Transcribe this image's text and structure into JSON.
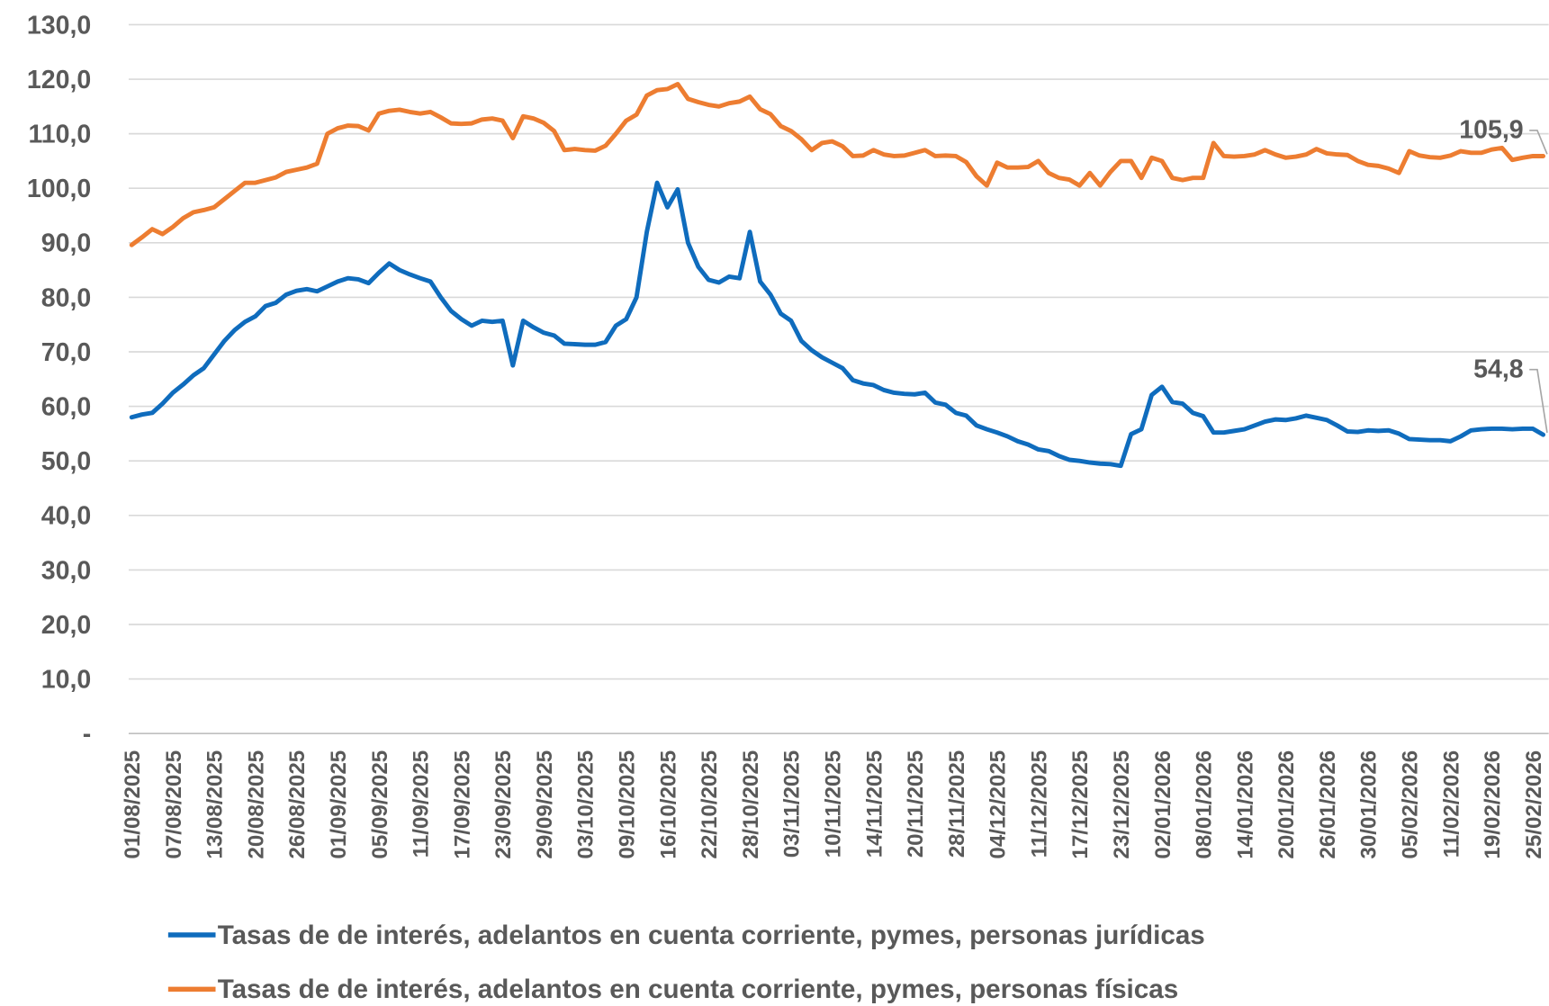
{
  "chart_data": {
    "type": "line",
    "categories": [
      "01/08/2025",
      null,
      null,
      null,
      "07/08/2025",
      null,
      null,
      null,
      "13/08/2025",
      null,
      null,
      null,
      "20/08/2025",
      null,
      null,
      null,
      "26/08/2025",
      null,
      null,
      null,
      "01/09/2025",
      null,
      null,
      null,
      "05/09/2025",
      null,
      null,
      null,
      "11/09/2025",
      null,
      null,
      null,
      "17/09/2025",
      null,
      null,
      null,
      "23/09/2025",
      null,
      null,
      null,
      "29/09/2025",
      null,
      null,
      null,
      "03/10/2025",
      null,
      null,
      null,
      "09/10/2025",
      null,
      null,
      null,
      "16/10/2025",
      null,
      null,
      null,
      "22/10/2025",
      null,
      null,
      null,
      "28/10/2025",
      null,
      null,
      null,
      "03/11/2025",
      null,
      null,
      null,
      "10/11/2025",
      null,
      null,
      null,
      "14/11/2025",
      null,
      null,
      null,
      "20/11/2025",
      null,
      null,
      null,
      "28/11/2025",
      null,
      null,
      null,
      "04/12/2025",
      null,
      null,
      null,
      "11/12/2025",
      null,
      null,
      null,
      "17/12/2025",
      null,
      null,
      null,
      "23/12/2025",
      null,
      null,
      null,
      "02/01/2026",
      null,
      null,
      null,
      "08/01/2026",
      null,
      null,
      null,
      "14/01/2026",
      null,
      null,
      null,
      "20/01/2026",
      null,
      null,
      null,
      "26/01/2026",
      null,
      null,
      null,
      "30/01/2026",
      null,
      null,
      null,
      "05/02/2026",
      null,
      null,
      null,
      "11/02/2026",
      null,
      null,
      null,
      "19/02/2026",
      null,
      null,
      null,
      "25/02/2026",
      null
    ],
    "series": [
      {
        "name": "Tasas de de interés, adelantos en cuenta corriente, pymes, personas jurídicas",
        "color": "#0f6cbd",
        "values": [
          58.0,
          58.5,
          58.8,
          60.5,
          62.5,
          64,
          65.7,
          67,
          69.5,
          72,
          74,
          75.5,
          76.5,
          78.4,
          79,
          80.5,
          81.2,
          81.5,
          81.1,
          82,
          82.9,
          83.5,
          83.3,
          82.6,
          84.5,
          86.2,
          85,
          84.2,
          83.5,
          82.9,
          80,
          77.5,
          76,
          74.8,
          75.7,
          75.5,
          75.7,
          67.5,
          75.7,
          74.5,
          73.5,
          73,
          71.5,
          71.4,
          71.3,
          71.3,
          71.8,
          74.8,
          76,
          80,
          92,
          101,
          96.5,
          99.8,
          90,
          85.6,
          83.2,
          82.7,
          83.8,
          83.5,
          92,
          82.9,
          80.5,
          77,
          75.7,
          72,
          70.3,
          69,
          68,
          67,
          64.8,
          64.2,
          63.9,
          63,
          62.5,
          62.3,
          62.2,
          62.5,
          60.7,
          60.3,
          58.8,
          58.3,
          56.5,
          55.8,
          55.2,
          54.5,
          53.6,
          53,
          52.1,
          51.8,
          50.9,
          50.2,
          50,
          49.7,
          49.5,
          49.4,
          49.1,
          54.9,
          55.8,
          62.1,
          63.6,
          60.8,
          60.5,
          58.8,
          58.2,
          55.2,
          55.2,
          55.5,
          55.8,
          56.5,
          57.2,
          57.6,
          57.5,
          57.8,
          58.3,
          57.9,
          57.5,
          56.5,
          55.4,
          55.3,
          55.6,
          55.5,
          55.6,
          55,
          54,
          53.9,
          53.8,
          53.8,
          53.6,
          54.5,
          55.6,
          55.8,
          55.9,
          55.9,
          55.8,
          55.9,
          55.9,
          54.8
        ],
        "value_labels": [
          null,
          null,
          null,
          null,
          null,
          null,
          null,
          null,
          null,
          null,
          null,
          null,
          null,
          null,
          null,
          null,
          null,
          null,
          null,
          null,
          null,
          null,
          null,
          null,
          null,
          null,
          null,
          null,
          null,
          null,
          null,
          null,
          null,
          null,
          null,
          null,
          null,
          null,
          null,
          null,
          null,
          null,
          null,
          null,
          null,
          null,
          null,
          null,
          null,
          null,
          null,
          null,
          null,
          null,
          null,
          null,
          null,
          null,
          null,
          null,
          null,
          null,
          null,
          null,
          null,
          null,
          null,
          null,
          null,
          null,
          null,
          null,
          null,
          null,
          null,
          null,
          null,
          null,
          null,
          null,
          null,
          null,
          null,
          null,
          null,
          null,
          null,
          null,
          null,
          null,
          null,
          null,
          null,
          null,
          null,
          null,
          null,
          null,
          null,
          null,
          null,
          null,
          null,
          null,
          null,
          null,
          null,
          null,
          null,
          null,
          null,
          null,
          null,
          null,
          null,
          null,
          null,
          null,
          null,
          null,
          null,
          null,
          null,
          null,
          null,
          null,
          null,
          null,
          null,
          null,
          null,
          null,
          null,
          null,
          null,
          null,
          null,
          "54,8"
        ]
      },
      {
        "name": "Tasas de de interés, adelantos en cuenta corriente, pymes, personas físicas",
        "color": "#ed7d31",
        "values": [
          89.6,
          91,
          92.5,
          91.6,
          92.9,
          94.5,
          95.6,
          96,
          96.5,
          98,
          99.5,
          101,
          101,
          101.5,
          102,
          103,
          103.4,
          103.8,
          104.5,
          110,
          111,
          111.5,
          111.4,
          110.6,
          113.7,
          114.2,
          114.4,
          114,
          113.7,
          114,
          113,
          111.9,
          111.8,
          111.9,
          112.6,
          112.8,
          112.4,
          109.2,
          113.2,
          112.8,
          112,
          110.5,
          107,
          107.2,
          107,
          106.9,
          107.8,
          110,
          112.4,
          113.5,
          117,
          118,
          118.2,
          119.1,
          116.4,
          115.8,
          115.3,
          115,
          115.6,
          115.9,
          116.8,
          114.5,
          113.6,
          111.4,
          110.5,
          109,
          107,
          108.3,
          108.6,
          107.7,
          105.9,
          106,
          107,
          106.2,
          105.9,
          106,
          106.5,
          107,
          105.9,
          106,
          105.9,
          104.8,
          102.2,
          100.5,
          104.7,
          103.8,
          103.8,
          103.9,
          105,
          102.8,
          101.9,
          101.6,
          100.5,
          102.8,
          100.5,
          103,
          105,
          105,
          101.9,
          105.6,
          105,
          101.9,
          101.5,
          101.9,
          101.9,
          108.3,
          105.9,
          105.8,
          105.9,
          106.2,
          107,
          106.2,
          105.6,
          105.8,
          106.2,
          107.2,
          106.4,
          106.2,
          106.1,
          105,
          104.3,
          104.1,
          103.6,
          102.8,
          106.8,
          106,
          105.7,
          105.6,
          106,
          106.8,
          106.5,
          106.5,
          107.1,
          107.4,
          105.2,
          105.6,
          105.9,
          105.9
        ],
        "value_labels": [
          null,
          null,
          null,
          null,
          null,
          null,
          null,
          null,
          null,
          null,
          null,
          null,
          null,
          null,
          null,
          null,
          null,
          null,
          null,
          null,
          null,
          null,
          null,
          null,
          null,
          null,
          null,
          null,
          null,
          null,
          null,
          null,
          null,
          null,
          null,
          null,
          null,
          null,
          null,
          null,
          null,
          null,
          null,
          null,
          null,
          null,
          null,
          null,
          null,
          null,
          null,
          null,
          null,
          null,
          null,
          null,
          null,
          null,
          null,
          null,
          null,
          null,
          null,
          null,
          null,
          null,
          null,
          null,
          null,
          null,
          null,
          null,
          null,
          null,
          null,
          null,
          null,
          null,
          null,
          null,
          null,
          null,
          null,
          null,
          null,
          null,
          null,
          null,
          null,
          null,
          null,
          null,
          null,
          null,
          null,
          null,
          null,
          null,
          null,
          null,
          null,
          null,
          null,
          null,
          null,
          null,
          null,
          null,
          null,
          null,
          null,
          null,
          null,
          null,
          null,
          null,
          null,
          null,
          null,
          null,
          null,
          null,
          null,
          null,
          null,
          null,
          null,
          null,
          null,
          null,
          null,
          null,
          null,
          null,
          null,
          null,
          null,
          "105,9"
        ]
      }
    ],
    "ylim": [
      0,
      130
    ],
    "yticks": [
      {
        "value": 0,
        "label": "-"
      },
      {
        "value": 10,
        "label": "10,0"
      },
      {
        "value": 20,
        "label": "20,0"
      },
      {
        "value": 30,
        "label": "30,0"
      },
      {
        "value": 40,
        "label": "40,0"
      },
      {
        "value": 50,
        "label": "50,0"
      },
      {
        "value": 60,
        "label": "60,0"
      },
      {
        "value": 70,
        "label": "70,0"
      },
      {
        "value": 80,
        "label": "80,0"
      },
      {
        "value": 90,
        "label": "90,0"
      },
      {
        "value": 100,
        "label": "100,0"
      },
      {
        "value": 110,
        "label": "110,0"
      },
      {
        "value": 120,
        "label": "120,0"
      },
      {
        "value": 130,
        "label": "130,0"
      }
    ],
    "grid": true,
    "legend": "bottom"
  }
}
